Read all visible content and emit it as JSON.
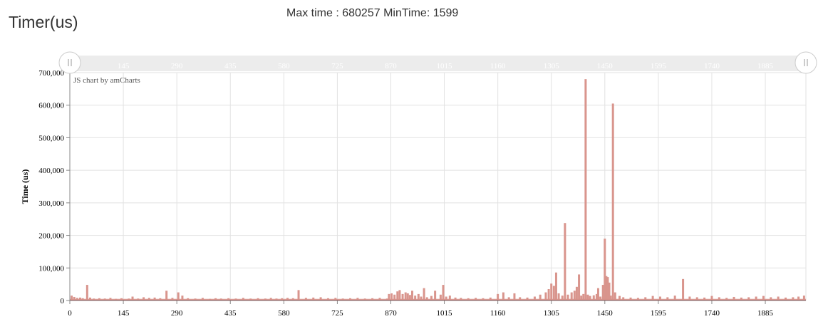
{
  "page": {
    "title": "Timer(us)",
    "stats_text": "Max time : 680257 MinTime: 1599"
  },
  "chart_credit": "JS chart by amCharts",
  "colors": {
    "bar": "#d9958d",
    "baseline": "#b23b3b",
    "grid": "#e2e2e2",
    "axis": "#888888",
    "scrollbar_bg": "#ececec"
  },
  "scrollbar": {
    "labels": [
      "145",
      "290",
      "435",
      "580",
      "725",
      "870",
      "1015",
      "1160",
      "1305",
      "1450",
      "1595",
      "1740",
      "1885"
    ],
    "left_handle_icon": "grip-lines-icon",
    "right_handle_icon": "grip-lines-icon"
  },
  "chart_data": {
    "type": "bar",
    "title": "",
    "xlabel": "",
    "ylabel": "Time (us)",
    "xlim": [
      0,
      1995
    ],
    "ylim": [
      0,
      700000
    ],
    "x_ticks": [
      "0",
      "145",
      "290",
      "435",
      "580",
      "725",
      "870",
      "1015",
      "1160",
      "1305",
      "1450",
      "1595",
      "1740",
      "1885"
    ],
    "x_tick_values": [
      0,
      145,
      290,
      435,
      580,
      725,
      870,
      1015,
      1160,
      1305,
      1450,
      1595,
      1740,
      1885
    ],
    "y_ticks": [
      "0",
      "100,000",
      "200,000",
      "300,000",
      "400,000",
      "500,000",
      "600,000",
      "700,000"
    ],
    "y_tick_values": [
      0,
      100000,
      200000,
      300000,
      400000,
      500000,
      600000,
      700000
    ],
    "grid": true,
    "baseline_value": 5000,
    "points": [
      [
        5,
        15000
      ],
      [
        12,
        11000
      ],
      [
        20,
        8000
      ],
      [
        28,
        9000
      ],
      [
        35,
        7000
      ],
      [
        47,
        48000
      ],
      [
        55,
        9000
      ],
      [
        65,
        6000
      ],
      [
        80,
        7000
      ],
      [
        95,
        6000
      ],
      [
        110,
        8000
      ],
      [
        125,
        5000
      ],
      [
        140,
        7000
      ],
      [
        160,
        6000
      ],
      [
        170,
        12000
      ],
      [
        185,
        6000
      ],
      [
        200,
        10000
      ],
      [
        215,
        8000
      ],
      [
        230,
        9000
      ],
      [
        245,
        7000
      ],
      [
        262,
        30000
      ],
      [
        278,
        8000
      ],
      [
        294,
        25000
      ],
      [
        305,
        15000
      ],
      [
        320,
        7000
      ],
      [
        340,
        6000
      ],
      [
        360,
        8000
      ],
      [
        380,
        5000
      ],
      [
        395,
        7000
      ],
      [
        410,
        6000
      ],
      [
        430,
        7000
      ],
      [
        450,
        6000
      ],
      [
        470,
        8000
      ],
      [
        490,
        6000
      ],
      [
        510,
        7000
      ],
      [
        530,
        6000
      ],
      [
        545,
        8000
      ],
      [
        560,
        6000
      ],
      [
        575,
        7000
      ],
      [
        590,
        8000
      ],
      [
        605,
        7000
      ],
      [
        620,
        32000
      ],
      [
        640,
        8000
      ],
      [
        660,
        9000
      ],
      [
        680,
        10000
      ],
      [
        700,
        7000
      ],
      [
        720,
        8000
      ],
      [
        740,
        6000
      ],
      [
        760,
        7000
      ],
      [
        780,
        8000
      ],
      [
        800,
        6000
      ],
      [
        820,
        7000
      ],
      [
        840,
        8000
      ],
      [
        860,
        6000
      ],
      [
        865,
        20000
      ],
      [
        872,
        22000
      ],
      [
        880,
        18000
      ],
      [
        888,
        28000
      ],
      [
        894,
        32000
      ],
      [
        902,
        20000
      ],
      [
        910,
        25000
      ],
      [
        916,
        22000
      ],
      [
        922,
        17000
      ],
      [
        928,
        30000
      ],
      [
        936,
        15000
      ],
      [
        945,
        20000
      ],
      [
        952,
        12000
      ],
      [
        960,
        38000
      ],
      [
        968,
        10000
      ],
      [
        980,
        14000
      ],
      [
        990,
        30000
      ],
      [
        1005,
        18000
      ],
      [
        1012,
        48000
      ],
      [
        1020,
        12000
      ],
      [
        1030,
        15000
      ],
      [
        1045,
        9000
      ],
      [
        1060,
        8000
      ],
      [
        1080,
        7000
      ],
      [
        1100,
        8000
      ],
      [
        1120,
        7000
      ],
      [
        1140,
        9000
      ],
      [
        1160,
        20000
      ],
      [
        1175,
        25000
      ],
      [
        1190,
        10000
      ],
      [
        1205,
        22000
      ],
      [
        1220,
        10000
      ],
      [
        1240,
        9000
      ],
      [
        1260,
        12000
      ],
      [
        1275,
        18000
      ],
      [
        1290,
        25000
      ],
      [
        1298,
        35000
      ],
      [
        1305,
        52000
      ],
      [
        1312,
        45000
      ],
      [
        1318,
        86000
      ],
      [
        1325,
        22000
      ],
      [
        1335,
        15000
      ],
      [
        1342,
        238000
      ],
      [
        1350,
        18000
      ],
      [
        1360,
        25000
      ],
      [
        1368,
        30000
      ],
      [
        1374,
        42000
      ],
      [
        1380,
        80000
      ],
      [
        1386,
        15000
      ],
      [
        1392,
        20000
      ],
      [
        1398,
        680000
      ],
      [
        1404,
        18000
      ],
      [
        1410,
        14000
      ],
      [
        1420,
        16000
      ],
      [
        1428,
        20000
      ],
      [
        1432,
        38000
      ],
      [
        1438,
        12000
      ],
      [
        1445,
        48000
      ],
      [
        1450,
        190000
      ],
      [
        1454,
        75000
      ],
      [
        1458,
        72000
      ],
      [
        1462,
        55000
      ],
      [
        1466,
        15000
      ],
      [
        1472,
        605000
      ],
      [
        1478,
        25000
      ],
      [
        1490,
        14000
      ],
      [
        1500,
        10000
      ],
      [
        1520,
        9000
      ],
      [
        1540,
        8000
      ],
      [
        1560,
        10000
      ],
      [
        1580,
        14000
      ],
      [
        1600,
        12000
      ],
      [
        1620,
        10000
      ],
      [
        1640,
        15000
      ],
      [
        1662,
        66000
      ],
      [
        1680,
        12000
      ],
      [
        1700,
        10000
      ],
      [
        1720,
        9000
      ],
      [
        1740,
        14000
      ],
      [
        1760,
        10000
      ],
      [
        1780,
        8000
      ],
      [
        1800,
        11000
      ],
      [
        1820,
        9000
      ],
      [
        1840,
        10000
      ],
      [
        1860,
        12000
      ],
      [
        1880,
        14000
      ],
      [
        1900,
        10000
      ],
      [
        1920,
        12000
      ],
      [
        1940,
        9000
      ],
      [
        1960,
        10000
      ],
      [
        1975,
        12000
      ],
      [
        1990,
        15000
      ]
    ]
  }
}
